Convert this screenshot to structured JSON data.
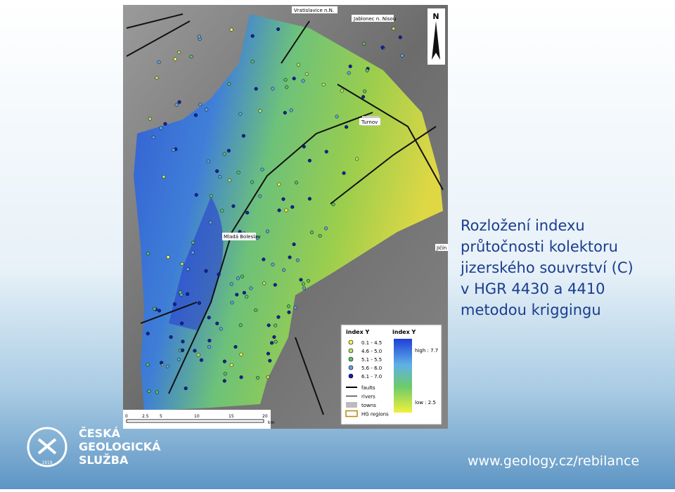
{
  "slide": {
    "title_lines": [
      "Rozložení indexu",
      "průtočnosti kolektoru",
      "jizerského souvrství (C)",
      "v  HGR 4430 a 4410",
      "metodou kriggingu"
    ],
    "url": "www.geology.cz/rebilance",
    "logo": {
      "lines": [
        "ČESKÁ",
        "GEOLOGICKÁ",
        "SLUŽBA"
      ],
      "year": "1919"
    }
  },
  "map": {
    "north": "N",
    "places": [
      {
        "label": "Vratislavice n.N."
      },
      {
        "label": "Jablonec n. Nisou"
      },
      {
        "label": "Turnov"
      },
      {
        "label": "Mladá Boleslav"
      },
      {
        "label": "Jičín"
      }
    ],
    "legend": {
      "points_title": "index Y",
      "classes": [
        {
          "label": "0.1 - 4.5",
          "color": "#f5f05a"
        },
        {
          "label": "4.6 - 5.0",
          "color": "#b9e36a"
        },
        {
          "label": "5.1 - 5.5",
          "color": "#5bbf6a"
        },
        {
          "label": "5.6 - 6.0",
          "color": "#5fa6e0"
        },
        {
          "label": "6.1 - 7.0",
          "color": "#1022a8"
        }
      ],
      "lines": [
        "faults",
        "rivers",
        "towns",
        "HG regions"
      ],
      "surface_title": "index Y",
      "high": "high : 7.7",
      "low": "low : 2.5"
    },
    "scale": [
      "0",
      "2.5",
      "5",
      "10",
      "15",
      "20",
      "km"
    ]
  }
}
